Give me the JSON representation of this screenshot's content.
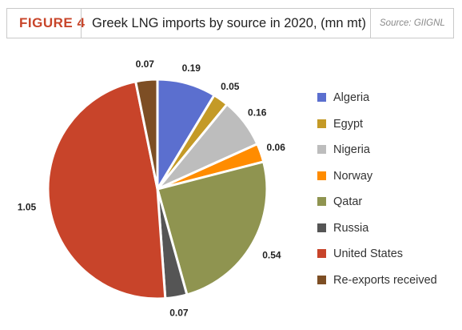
{
  "header": {
    "figure_label": "FIGURE 4",
    "title": "Greek LNG imports by source in 2020, (mn mt)",
    "source": "Source: GIIGNL"
  },
  "chart_data": {
    "type": "pie",
    "title": "Greek LNG imports by source in 2020, (mn mt)",
    "categories": [
      "Algeria",
      "Egypt",
      "Nigeria",
      "Norway",
      "Qatar",
      "Russia",
      "United States",
      "Re-exports received"
    ],
    "values": [
      0.19,
      0.05,
      0.16,
      0.06,
      0.54,
      0.07,
      1.05,
      0.07
    ],
    "value_labels": [
      "0.19",
      "0.05",
      "0.16",
      "0.06",
      "0.54",
      "0.07",
      "1.05",
      "0.07"
    ],
    "colors": [
      "#5b6fcf",
      "#c49a27",
      "#bdbdbd",
      "#ff8c00",
      "#8f9450",
      "#555555",
      "#c8442a",
      "#7d4e24"
    ],
    "legend_position": "right"
  }
}
